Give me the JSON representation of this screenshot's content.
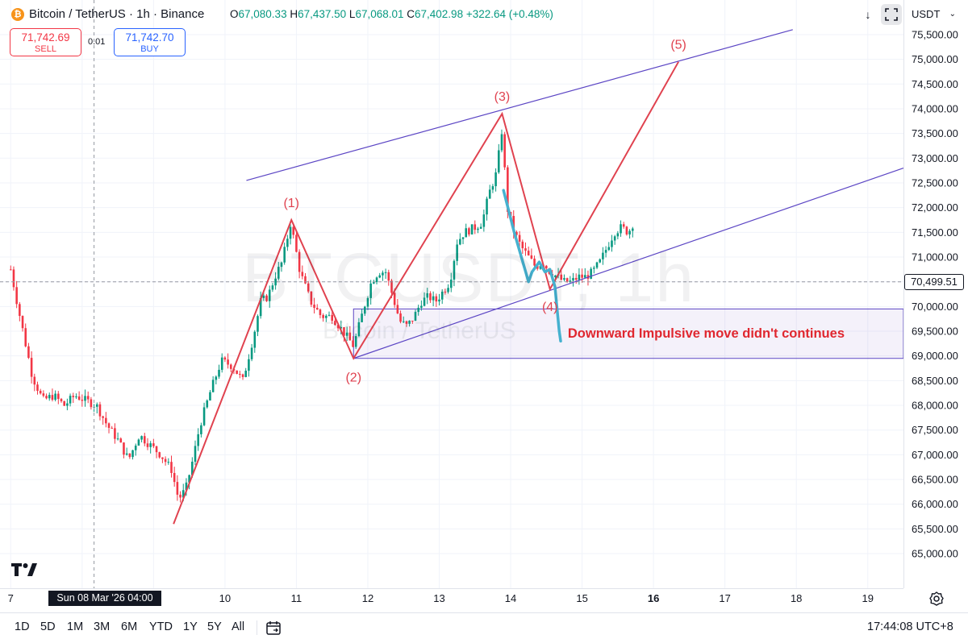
{
  "header": {
    "coin_icon": "bitcoin-icon",
    "title": "Bitcoin / TetherUS · 1h · Binance",
    "ohlc": {
      "o_key": "O",
      "o_val": "67,080.33",
      "h_key": "H",
      "h_val": "67,437.50",
      "l_key": "L",
      "l_val": "67,068.01",
      "c_key": "C",
      "c_val": "67,402.98",
      "change": "+322.64 (+0.48%)"
    },
    "sell_price": "71,742.69",
    "sell_label": "SELL",
    "buy_price": "71,742.70",
    "buy_label": "BUY",
    "spread": "0.01",
    "currency": "USDT"
  },
  "watermark": {
    "symbol": "BTCUSDT, 1h",
    "name": "Bitcoin / TetherUS"
  },
  "chart_data": {
    "type": "candlestick",
    "price_axis": {
      "ticks": [
        65000,
        65500,
        66000,
        66500,
        67000,
        67500,
        68000,
        68500,
        69000,
        69500,
        70000,
        70500,
        71000,
        71500,
        72000,
        72500,
        73000,
        73500,
        74000,
        74500,
        75000,
        75500
      ],
      "tick_labels": [
        "65,000.00",
        "65,500.00",
        "66,000.00",
        "66,500.00",
        "67,000.00",
        "67,500.00",
        "68,000.00",
        "68,500.00",
        "69,000.00",
        "69,500.00",
        "70,000.00",
        "70,500.00",
        "71,000.00",
        "71,500.00",
        "72,000.00",
        "72,500.00",
        "73,000.00",
        "73,500.00",
        "74,000.00",
        "74,500.00",
        "75,000.00",
        "75,500.00"
      ],
      "range": [
        64300,
        76200
      ]
    },
    "time_axis": {
      "labels": [
        "7",
        "8",
        "9",
        "10",
        "11",
        "12",
        "13",
        "14",
        "15",
        "16",
        "17",
        "18",
        "19"
      ],
      "label_days": [
        7,
        8,
        9,
        10,
        11,
        12,
        13,
        14,
        15,
        16,
        17,
        18,
        19
      ],
      "bold_label": "16",
      "range_days": [
        6.85,
        19.5
      ],
      "month": "Mar 2026"
    },
    "current_price": 70499.51,
    "current_price_label": "70,499.51",
    "crosshair_time_label": "Sun 08 Mar '26   04:00",
    "price_path": [
      [
        7.0,
        70750
      ],
      [
        7.1,
        70000
      ],
      [
        7.2,
        69300
      ],
      [
        7.3,
        68600
      ],
      [
        7.45,
        68100
      ],
      [
        7.6,
        68200
      ],
      [
        7.75,
        68000
      ],
      [
        7.9,
        68200
      ],
      [
        8.05,
        68100
      ],
      [
        8.2,
        68000
      ],
      [
        8.35,
        67600
      ],
      [
        8.5,
        67300
      ],
      [
        8.65,
        66900
      ],
      [
        8.8,
        67400
      ],
      [
        8.95,
        67200
      ],
      [
        9.1,
        67000
      ],
      [
        9.25,
        66700
      ],
      [
        9.35,
        66100
      ],
      [
        9.45,
        66300
      ],
      [
        9.55,
        66900
      ],
      [
        9.65,
        67600
      ],
      [
        9.8,
        68300
      ],
      [
        9.95,
        68900
      ],
      [
        10.1,
        68800
      ],
      [
        10.25,
        68500
      ],
      [
        10.4,
        69400
      ],
      [
        10.5,
        70100
      ],
      [
        10.6,
        70200
      ],
      [
        10.7,
        70600
      ],
      [
        10.8,
        70900
      ],
      [
        10.92,
        71700
      ],
      [
        11.05,
        70700
      ],
      [
        11.2,
        70100
      ],
      [
        11.35,
        69800
      ],
      [
        11.5,
        69800
      ],
      [
        11.65,
        69500
      ],
      [
        11.8,
        69200
      ],
      [
        11.95,
        70000
      ],
      [
        12.05,
        70500
      ],
      [
        12.15,
        70700
      ],
      [
        12.25,
        70700
      ],
      [
        12.35,
        70200
      ],
      [
        12.45,
        69700
      ],
      [
        12.55,
        69600
      ],
      [
        12.65,
        69800
      ],
      [
        12.75,
        70100
      ],
      [
        12.85,
        70200
      ],
      [
        12.95,
        70100
      ],
      [
        13.05,
        70300
      ],
      [
        13.15,
        70500
      ],
      [
        13.25,
        71300
      ],
      [
        13.35,
        71500
      ],
      [
        13.5,
        71600
      ],
      [
        13.6,
        71700
      ],
      [
        13.7,
        72300
      ],
      [
        13.8,
        72700
      ],
      [
        13.88,
        73600
      ],
      [
        13.95,
        72000
      ],
      [
        14.05,
        71500
      ],
      [
        14.15,
        71200
      ],
      [
        14.25,
        71000
      ],
      [
        14.35,
        70800
      ],
      [
        14.45,
        70900
      ],
      [
        14.55,
        70700
      ],
      [
        14.65,
        70600
      ],
      [
        14.75,
        70500
      ],
      [
        14.85,
        70500
      ],
      [
        14.95,
        70600
      ],
      [
        15.05,
        70600
      ],
      [
        15.15,
        70700
      ],
      [
        15.25,
        70900
      ],
      [
        15.35,
        71200
      ],
      [
        15.45,
        71500
      ],
      [
        15.55,
        71600
      ],
      [
        15.65,
        71500
      ],
      [
        15.72,
        71700
      ]
    ],
    "elliott_waves": {
      "labels": [
        "(1)",
        "(2)",
        "(3)",
        "(4)",
        "(5)"
      ],
      "points": [
        [
          9.28,
          65600
        ],
        [
          10.93,
          71750
        ],
        [
          11.8,
          68950
        ],
        [
          13.88,
          73900
        ],
        [
          14.55,
          70350
        ],
        [
          16.35,
          74950
        ]
      ],
      "color": "#e0424f"
    },
    "channel": {
      "upper": [
        [
          10.3,
          72550
        ],
        [
          17.95,
          75600
        ]
      ],
      "lower": [
        [
          11.8,
          68950
        ],
        [
          19.5,
          72800
        ]
      ],
      "color": "#5b45c4"
    },
    "zone": {
      "price_from": 68950,
      "price_to": 69950,
      "day_from": 11.8,
      "color": "#5b45c4"
    },
    "alt_path": {
      "points": [
        [
          13.9,
          72350
        ],
        [
          14.05,
          71500
        ],
        [
          14.15,
          71000
        ],
        [
          14.25,
          70500
        ],
        [
          14.3,
          70700
        ],
        [
          14.4,
          70900
        ],
        [
          14.48,
          70700
        ],
        [
          14.55,
          70750
        ],
        [
          14.62,
          70400
        ],
        [
          14.66,
          69800
        ],
        [
          14.68,
          69500
        ],
        [
          14.7,
          69300
        ]
      ],
      "color": "#45b1cf"
    },
    "annotation": {
      "text": "Downward Impulsive move didn't continues",
      "color": "#e0272f",
      "day": 14.8,
      "price": 69450
    }
  },
  "toolbar": {
    "ranges": [
      "1D",
      "5D",
      "1M",
      "3M",
      "6M",
      "YTD",
      "1Y",
      "5Y",
      "All"
    ],
    "calendar_icon": "calendar-icon",
    "clock": "17:44:08 UTC+8"
  },
  "colors": {
    "up": "#089981",
    "down": "#f23645",
    "wave": "#e0424f",
    "channel": "#5b45c4",
    "alt_path": "#45b1cf",
    "annotation": "#e0272f"
  }
}
